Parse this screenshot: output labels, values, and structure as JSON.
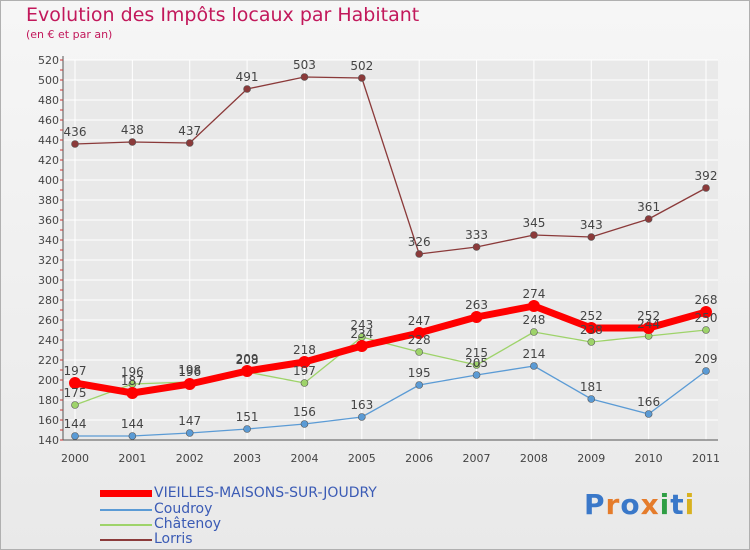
{
  "header": {
    "title": "Evolution des Impôts locaux par Habitant",
    "subtitle": "(en € et par an)"
  },
  "logo": {
    "text": "Proxiti"
  },
  "colors": {
    "title": "#c2185b",
    "legend_text": "#3b5bb5",
    "grid": "#ffffff",
    "axis": "#555555"
  },
  "chart_data": {
    "type": "line",
    "title": "Evolution des Impôts locaux par Habitant",
    "subtitle": "(en € et par an)",
    "categories": [
      "2000",
      "2001",
      "2002",
      "2003",
      "2004",
      "2005",
      "2006",
      "2007",
      "2008",
      "2009",
      "2010",
      "2011"
    ],
    "ylim": [
      140,
      520
    ],
    "yticks": [
      140,
      160,
      180,
      200,
      220,
      240,
      260,
      280,
      300,
      320,
      340,
      360,
      380,
      400,
      420,
      440,
      460,
      480,
      500,
      520
    ],
    "grid": true,
    "legend_position": "bottom-left",
    "series": [
      {
        "name": "VIEILLES-MAISONS-SUR-JOUDRY",
        "color": "#ff0000",
        "thick": true,
        "values": [
          197,
          187,
          196,
          209,
          218,
          234,
          247,
          263,
          274,
          252,
          252,
          268
        ],
        "labels": [
          "197",
          "187",
          "196",
          "209",
          "218",
          "234",
          "247",
          "263",
          "274",
          "252",
          "252",
          "268"
        ]
      },
      {
        "name": "Coudroy",
        "color": "#5b9bd5",
        "thick": false,
        "values": [
          144,
          144,
          147,
          151,
          156,
          163,
          195,
          205,
          214,
          181,
          166,
          209
        ],
        "labels": [
          "144",
          "144",
          "147",
          "151",
          "156",
          "163",
          "195",
          "205",
          "214",
          "181",
          "166",
          "209"
        ]
      },
      {
        "name": "Châtenoy",
        "color": "#9ed36a",
        "thick": false,
        "values": [
          175,
          196,
          198,
          208,
          197,
          243,
          228,
          215,
          248,
          238,
          244,
          250
        ],
        "labels": [
          "175",
          "196",
          "198",
          "208",
          "197",
          "243",
          "228",
          "215",
          "248",
          "238",
          "244",
          "250"
        ]
      },
      {
        "name": "Lorris",
        "color": "#8b3a3a",
        "thick": false,
        "values": [
          436,
          438,
          437,
          491,
          503,
          502,
          326,
          333,
          345,
          343,
          361,
          392
        ],
        "labels": [
          "436",
          "438",
          "437",
          "491",
          "503",
          "502",
          "326",
          "333",
          "345",
          "343",
          "361",
          "392"
        ]
      }
    ]
  }
}
